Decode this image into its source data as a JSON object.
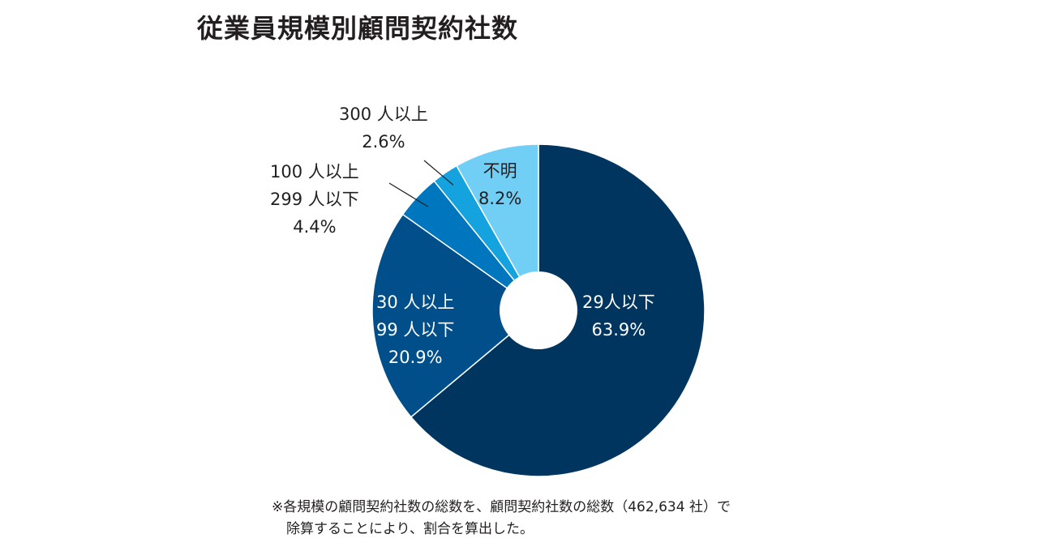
{
  "chart_data": {
    "type": "pie",
    "title": "従業員規模別顧問契約社数",
    "categories": [
      "29人以下",
      "30人以上99人以下",
      "100人以上299人以下",
      "300人以上",
      "不明"
    ],
    "values": [
      63.9,
      20.9,
      4.4,
      2.6,
      8.2
    ],
    "unit": "%",
    "colors": [
      "#003560",
      "#004f8b",
      "#0076bf",
      "#15a3e0",
      "#71cff5"
    ],
    "labels": [
      {
        "lines": [
          "29人以下",
          "63.9%"
        ]
      },
      {
        "lines": [
          "30 人以上",
          "99 人以下",
          "20.9%"
        ]
      },
      {
        "lines": [
          "100 人以上",
          "299 人以下",
          "4.4%"
        ]
      },
      {
        "lines": [
          "300 人以上",
          "2.6%"
        ]
      },
      {
        "lines": [
          "不明",
          "8.2%"
        ]
      }
    ],
    "note": [
      "※各規模の顧問契約社数の総数を、顧問契約社数の総数（462,634 社）で",
      "除算することにより、割合を算出した。"
    ]
  }
}
